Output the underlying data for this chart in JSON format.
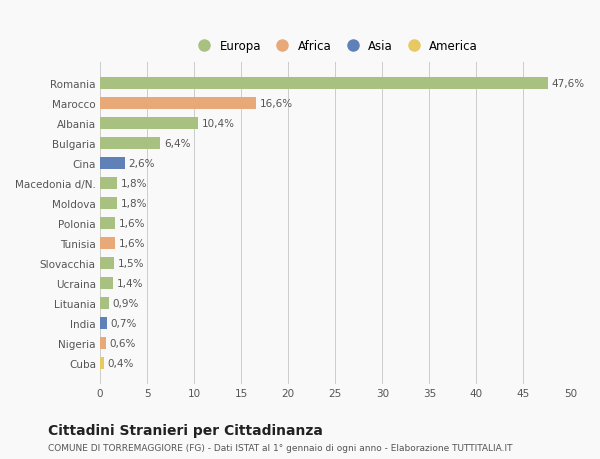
{
  "categories": [
    "Romania",
    "Marocco",
    "Albania",
    "Bulgaria",
    "Cina",
    "Macedonia d/N.",
    "Moldova",
    "Polonia",
    "Tunisia",
    "Slovacchia",
    "Ucraina",
    "Lituania",
    "India",
    "Nigeria",
    "Cuba"
  ],
  "values": [
    47.6,
    16.6,
    10.4,
    6.4,
    2.6,
    1.8,
    1.8,
    1.6,
    1.6,
    1.5,
    1.4,
    0.9,
    0.7,
    0.6,
    0.4
  ],
  "labels": [
    "47,6%",
    "16,6%",
    "10,4%",
    "6,4%",
    "2,6%",
    "1,8%",
    "1,8%",
    "1,6%",
    "1,6%",
    "1,5%",
    "1,4%",
    "0,9%",
    "0,7%",
    "0,6%",
    "0,4%"
  ],
  "colors": [
    "#a8c080",
    "#e8a878",
    "#a8c080",
    "#a8c080",
    "#6080b8",
    "#a8c080",
    "#a8c080",
    "#a8c080",
    "#e8a878",
    "#a8c080",
    "#a8c080",
    "#a8c080",
    "#6080b8",
    "#e8a878",
    "#e8c860"
  ],
  "legend_labels": [
    "Europa",
    "Africa",
    "Asia",
    "America"
  ],
  "legend_colors": [
    "#a8c080",
    "#e8a878",
    "#6080b8",
    "#e8c860"
  ],
  "title": "Cittadini Stranieri per Cittadinanza",
  "subtitle": "COMUNE DI TORREMAGGIORE (FG) - Dati ISTAT al 1° gennaio di ogni anno - Elaborazione TUTTITALIA.IT",
  "xlim": [
    0,
    50
  ],
  "xticks": [
    0,
    5,
    10,
    15,
    20,
    25,
    30,
    35,
    40,
    45,
    50
  ],
  "background_color": "#f9f9f9",
  "bar_height": 0.6,
  "label_fontsize": 7.5,
  "tick_fontsize": 7.5,
  "title_fontsize": 10,
  "subtitle_fontsize": 6.5
}
